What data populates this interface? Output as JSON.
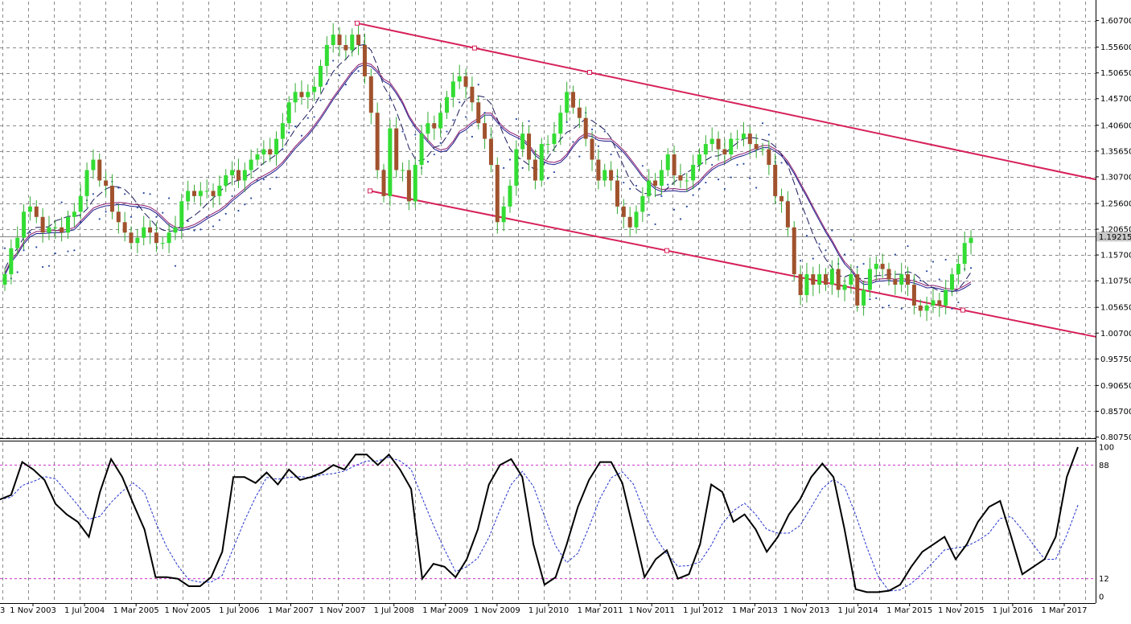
{
  "colors": {
    "background": "#ffffff",
    "grid": "#8a8a8a",
    "bull_candle": "#33dd33",
    "bear_candle": "#a0522d",
    "wick": "#33aa33",
    "channel": "#d6215a",
    "ma_fast": "#1a1a8c",
    "ma_slow": "#8b1a6b",
    "ma_dash": "#1a1a5c",
    "sar": "#2a4aa0",
    "price_label_bg": "#c8c8c8",
    "stoch_main": "#000000",
    "stoch_signal": "#2233cc",
    "stoch_level": "#cc33cc"
  },
  "chart_data": [
    {
      "type": "candlestick",
      "title": "",
      "timeframe": "monthly",
      "y_ticks": [
        "1.60700",
        "1.55600",
        "1.50650",
        "1.45700",
        "1.40600",
        "1.35650",
        "1.30700",
        "1.25600",
        "1.20650",
        "1.15700",
        "1.10750",
        "1.05650",
        "1.00700",
        "0.95750",
        "0.90650",
        "0.85700",
        "0.80750"
      ],
      "ylim": [
        0.8075,
        1.621
      ],
      "current_price_label": "1.19215",
      "current_price": 1.19215,
      "x_labels": [
        "1 Nov 2003",
        "1 Jul 2004",
        "1 Mar 2005",
        "1 Nov 2005",
        "1 Jul 2006",
        "1 Mar 2007",
        "1 Nov 2007",
        "1 Jul 2008",
        "1 Mar 2009",
        "1 Nov 2009",
        "1 Jul 2010",
        "1 Mar 2011",
        "1 Nov 2011",
        "1 Jul 2012",
        "1 Mar 2013",
        "1 Nov 2013",
        "1 Jul 2014",
        "1 Mar 2015",
        "1 Nov 2015",
        "1 Jul 2016",
        "1 Mar 2017"
      ],
      "x_label_left_fragment": "3",
      "closes_monthly_approx": [
        1.12,
        1.17,
        1.19,
        1.24,
        1.25,
        1.23,
        1.2,
        1.21,
        1.21,
        1.2,
        1.23,
        1.24,
        1.27,
        1.32,
        1.34,
        1.3,
        1.29,
        1.24,
        1.22,
        1.2,
        1.18,
        1.19,
        1.21,
        1.2,
        1.18,
        1.18,
        1.2,
        1.21,
        1.26,
        1.28,
        1.27,
        1.28,
        1.28,
        1.27,
        1.29,
        1.31,
        1.32,
        1.3,
        1.32,
        1.34,
        1.35,
        1.36,
        1.35,
        1.38,
        1.41,
        1.45,
        1.47,
        1.46,
        1.47,
        1.48,
        1.52,
        1.56,
        1.58,
        1.56,
        1.55,
        1.58,
        1.56,
        1.5,
        1.43,
        1.32,
        1.27,
        1.4,
        1.32,
        1.32,
        1.26,
        1.33,
        1.39,
        1.41,
        1.4,
        1.43,
        1.46,
        1.49,
        1.5,
        1.48,
        1.45,
        1.41,
        1.38,
        1.33,
        1.22,
        1.25,
        1.29,
        1.36,
        1.39,
        1.34,
        1.3,
        1.37,
        1.37,
        1.39,
        1.43,
        1.47,
        1.44,
        1.42,
        1.38,
        1.34,
        1.3,
        1.32,
        1.3,
        1.25,
        1.23,
        1.21,
        1.24,
        1.27,
        1.3,
        1.29,
        1.32,
        1.35,
        1.31,
        1.3,
        1.3,
        1.33,
        1.35,
        1.37,
        1.38,
        1.36,
        1.35,
        1.38,
        1.38,
        1.39,
        1.37,
        1.36,
        1.36,
        1.33,
        1.27,
        1.26,
        1.21,
        1.12,
        1.08,
        1.12,
        1.1,
        1.12,
        1.1,
        1.13,
        1.09,
        1.1,
        1.12,
        1.06,
        1.09,
        1.13,
        1.14,
        1.13,
        1.11,
        1.1,
        1.12,
        1.1,
        1.06,
        1.05,
        1.06,
        1.07,
        1.06,
        1.09,
        1.12,
        1.14,
        1.18,
        1.19
      ],
      "channel_upper": {
        "start_date": "1 Apr 2008",
        "start": 1.602,
        "end_date": "1 Jul 2017",
        "end": 1.302
      },
      "channel_lower": {
        "start_date": "1 Jun 2008",
        "start": 1.28,
        "end_date": "1 Jul 2017",
        "end": 1.0
      }
    },
    {
      "type": "line",
      "title": "",
      "indicator": "stochastic",
      "y_ticks": [
        "100",
        "88",
        "12",
        "0"
      ],
      "levels": [
        88,
        12
      ],
      "ylim": [
        0,
        100
      ],
      "main_approx": [
        65,
        68,
        90,
        85,
        78,
        62,
        55,
        50,
        40,
        70,
        92,
        80,
        62,
        45,
        13,
        13,
        12,
        7,
        7,
        13,
        30,
        80,
        80,
        76,
        83,
        75,
        85,
        78,
        80,
        83,
        88,
        85,
        95,
        95,
        88,
        95,
        85,
        72,
        12,
        22,
        20,
        13,
        25,
        45,
        75,
        88,
        92,
        80,
        35,
        8,
        13,
        35,
        60,
        78,
        90,
        90,
        76,
        45,
        13,
        25,
        31,
        12,
        15,
        35,
        75,
        70,
        50,
        55,
        45,
        30,
        40,
        55,
        65,
        80,
        89,
        80,
        45,
        5,
        3,
        3,
        4,
        8,
        20,
        30,
        35,
        40,
        25,
        35,
        50,
        60,
        64,
        40,
        15,
        20,
        25,
        40,
        80,
        100
      ]
    }
  ]
}
